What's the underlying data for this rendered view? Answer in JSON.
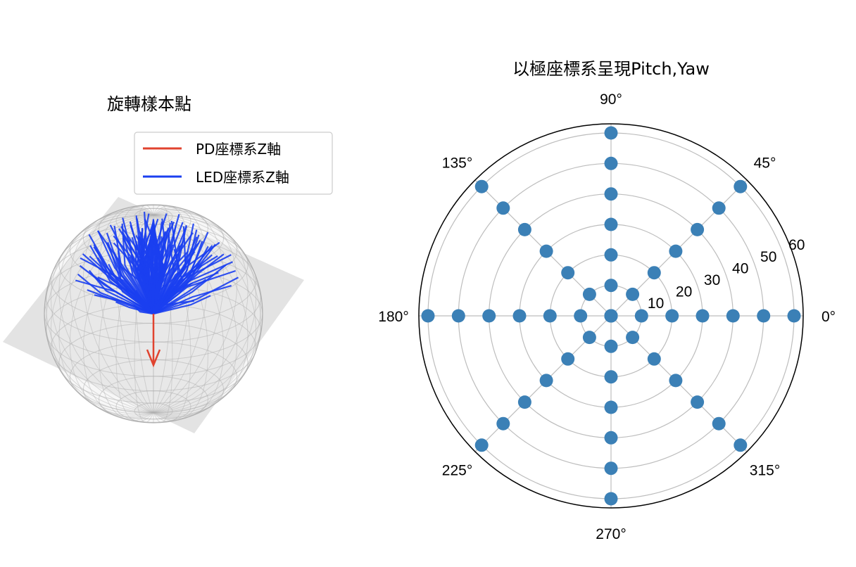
{
  "chart_data": [
    {
      "type": "3d-line",
      "title": "旋轉樣本點",
      "legend": {
        "placement": "top-right",
        "entries": [
          {
            "label": "PD座標系Z軸",
            "color": "#e0432f"
          },
          {
            "label": "LED座標系Z軸",
            "color": "#1b3ff0"
          }
        ]
      },
      "sphere": {
        "wireframe": true,
        "color": "#b0b0b0"
      },
      "plane": {
        "color": "#d9d9d9"
      },
      "series": [
        {
          "legend_ref": 0,
          "vector": [
            0,
            0,
            -1
          ]
        },
        {
          "legend_ref": 1,
          "pitch_deg": [
            0,
            10,
            20,
            30,
            40,
            50,
            60
          ],
          "yaw_step_deg": 45
        }
      ]
    },
    {
      "type": "scatter",
      "projection": "polar",
      "title": "以極座標系呈現Pitch,Yaw",
      "theta_ticks_deg": [
        "0°",
        "45°",
        "90°",
        "135°",
        "180°",
        "225°",
        "270°",
        "315°"
      ],
      "r_ticks": [
        "10",
        "20",
        "30",
        "40",
        "50",
        "60"
      ],
      "rlim": [
        0,
        63
      ],
      "grid": true,
      "marker_color": "#3b80b6",
      "theta_deg": [
        0,
        45,
        90,
        135,
        180,
        225,
        270,
        315
      ],
      "r": [
        0,
        10,
        20,
        30,
        40,
        50,
        60
      ],
      "points_note": "every pitch r for every yaw theta"
    }
  ]
}
